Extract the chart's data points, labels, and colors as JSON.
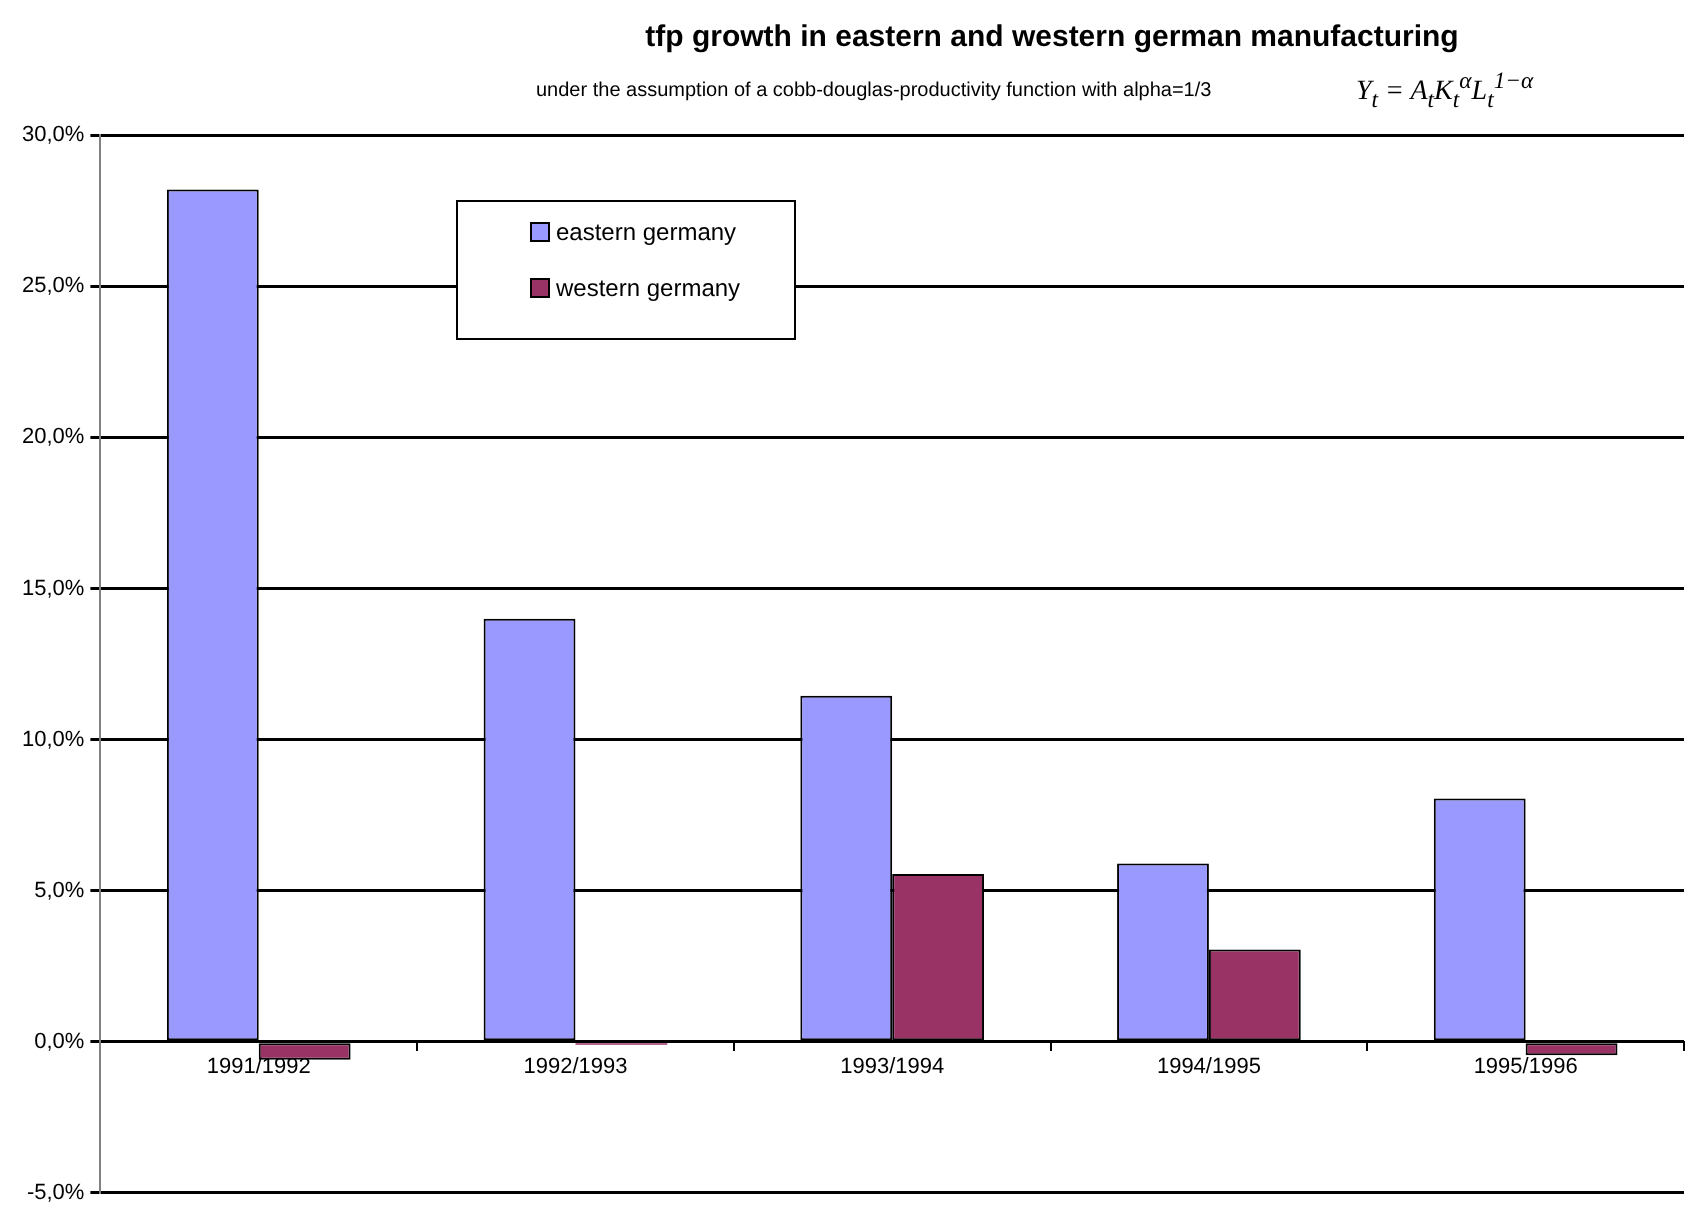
{
  "chart_data": {
    "type": "bar",
    "title": "tfp growth in eastern and western german manufacturing",
    "subtitle": "under the assumption of a cobb-douglas-productivity function with alpha=1/3",
    "annotations": [
      "Y$_{t}$ = A$_{t}$K$_{t}$$^{α}$L$_{t}$$^{1−α}$"
    ],
    "categories": [
      "1991/1992",
      "1992/1993",
      "1993/1994",
      "1994/1995",
      "1995/1996"
    ],
    "series": [
      {
        "name": "eastern germany",
        "color": "#9999ff",
        "values": [
          28.2,
          14.0,
          11.45,
          5.9,
          8.05
        ]
      },
      {
        "name": "western germany",
        "color": "#993366",
        "values": [
          -0.6,
          -0.1,
          5.55,
          3.05,
          -0.45
        ]
      }
    ],
    "ylim": [
      -5,
      30
    ],
    "yticks": [
      {
        "value": -5,
        "label": "-5,0%"
      },
      {
        "value": 0,
        "label": "0,0%"
      },
      {
        "value": 5,
        "label": "5,0%"
      },
      {
        "value": 10,
        "label": "10,0%"
      },
      {
        "value": 15,
        "label": "15,0%"
      },
      {
        "value": 20,
        "label": "20,0%"
      },
      {
        "value": 25,
        "label": "25,0%"
      },
      {
        "value": 30,
        "label": "30,0%"
      }
    ],
    "grid": "y",
    "legend": "top left"
  }
}
